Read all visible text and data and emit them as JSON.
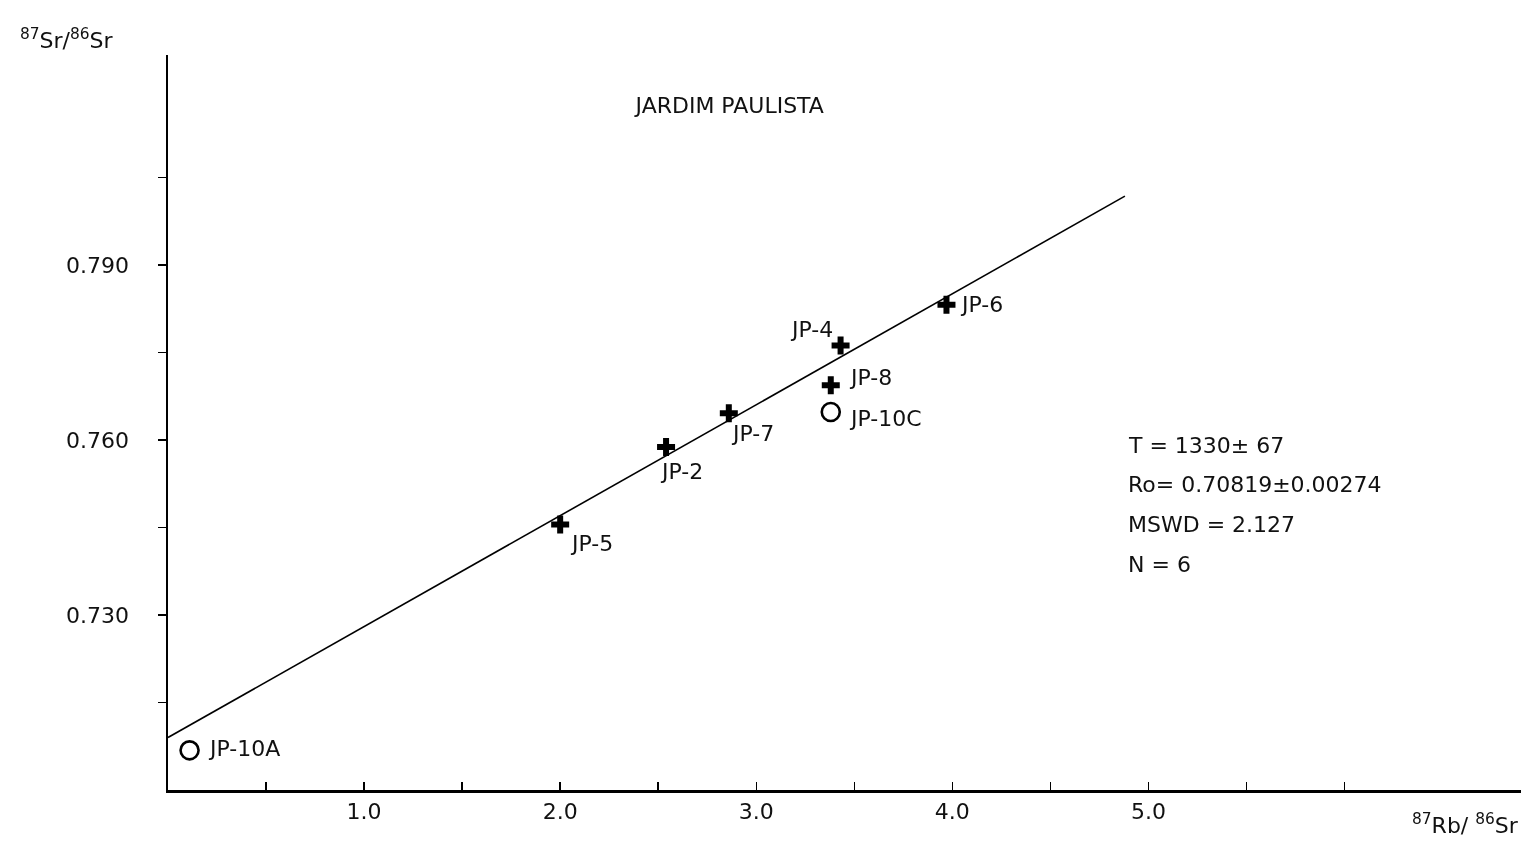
{
  "chart_data": {
    "type": "scatter",
    "title": "JARDIM PAULISTA",
    "xlabel": "$^{87}$Rb/ $^{86}$Sr",
    "ylabel": "$^{87}$Sr/$^{86}$Sr",
    "xlim": [
      0,
      6.9
    ],
    "ylim": [
      0.7,
      0.826
    ],
    "xticks": [
      {
        "value": 0.5,
        "label": null
      },
      {
        "value": 1,
        "label": "1.0"
      },
      {
        "value": 1.5,
        "label": null
      },
      {
        "value": 2,
        "label": "2.0"
      },
      {
        "value": 2.5,
        "label": null
      },
      {
        "value": 3,
        "label": "3.0"
      },
      {
        "value": 3.5,
        "label": null
      },
      {
        "value": 4,
        "label": "4.0"
      },
      {
        "value": 4.5,
        "label": null
      },
      {
        "value": 5,
        "label": "5.0"
      },
      {
        "value": 5.5,
        "label": null
      },
      {
        "value": 6,
        "label": null
      }
    ],
    "yticks": [
      {
        "value": 0.715,
        "label": null
      },
      {
        "value": 0.73,
        "label": "0.730"
      },
      {
        "value": 0.745,
        "label": null
      },
      {
        "value": 0.76,
        "label": "0.760"
      },
      {
        "value": 0.775,
        "label": null
      },
      {
        "value": 0.79,
        "label": "0.790"
      },
      {
        "value": 0.805,
        "label": null
      }
    ],
    "grid": false,
    "series": [
      {
        "type": "line",
        "color": "#000000",
        "marker": "none",
        "line_style": "solid",
        "x": [
          0,
          4.88
        ],
        "values": [
          0.709,
          0.8018
        ]
      },
      {
        "type": "scatter",
        "color": "#000000",
        "marker": "cross",
        "x": [
          2.0,
          2.54,
          2.86,
          3.43,
          3.38,
          3.97
        ],
        "values": [
          0.7455,
          0.7588,
          0.7646,
          0.7762,
          0.7694,
          0.7832
        ]
      },
      {
        "type": "scatter",
        "color": "#000000",
        "marker": "circle",
        "x": [
          0.11,
          3.38
        ],
        "values": [
          0.7068,
          0.7648
        ]
      }
    ],
    "annotations": [
      {
        "text": "JP-5",
        "x": 2.0,
        "y": 0.7455
      },
      {
        "text": "JP-2",
        "x": 2.54,
        "y": 0.7588
      },
      {
        "text": "JP-7",
        "x": 2.86,
        "y": 0.7646
      },
      {
        "text": "JP-4",
        "x": 3.43,
        "y": 0.7762
      },
      {
        "text": "JP-8",
        "x": 3.38,
        "y": 0.7694
      },
      {
        "text": "JP-6",
        "x": 3.97,
        "y": 0.7832
      },
      {
        "text": "JP-10A",
        "x": 0.11,
        "y": 0.7068
      },
      {
        "text": "JP-10C",
        "x": 3.38,
        "y": 0.7648
      },
      "T = 1330± 67",
      "Ro= 0.70819±0.00274",
      "MSWD = 2.127",
      "N = 6"
    ]
  }
}
